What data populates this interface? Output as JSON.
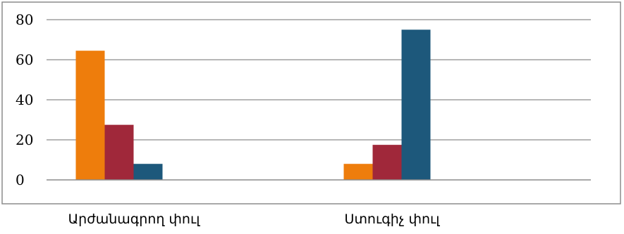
{
  "chart_data": {
    "type": "bar",
    "categories": [
      "Արժանագրող փուլ",
      "Ստուգիչ փուլ"
    ],
    "series": [
      {
        "values": [
          64.5,
          8
        ],
        "color": "#ee7d0c"
      },
      {
        "values": [
          27.5,
          17.5
        ],
        "color": "#a0283a"
      },
      {
        "values": [
          8,
          75
        ],
        "color": "#1d587b"
      }
    ],
    "ylim": [
      0,
      80
    ],
    "yticks": [
      "0",
      "20",
      "40",
      "60",
      "80"
    ],
    "grid": true,
    "legend": "none",
    "title": "",
    "xlabel": "",
    "ylabel": ""
  }
}
